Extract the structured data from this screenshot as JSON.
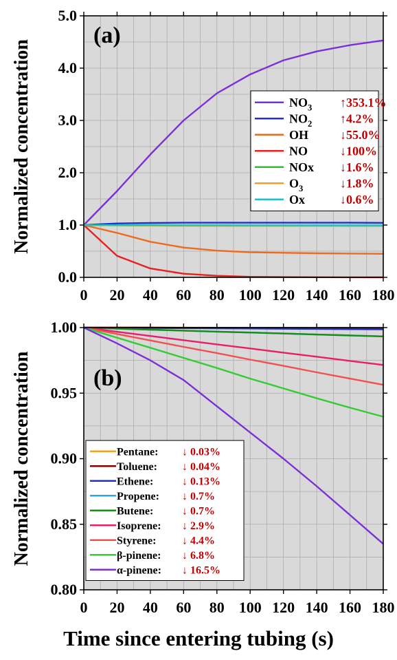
{
  "figure": {
    "xlabel": "Time since entering tubing (s)"
  },
  "chart_data": [
    {
      "type": "line",
      "panel_label": "(a)",
      "ylabel": "Normalized concentration",
      "xlim": [
        0,
        180
      ],
      "ylim": [
        0,
        5.0
      ],
      "x_ticks": [
        0,
        20,
        40,
        60,
        80,
        100,
        120,
        140,
        160,
        180
      ],
      "y_ticks": [
        "0.0",
        "1.0",
        "2.0",
        "3.0",
        "4.0",
        "5.0"
      ],
      "grid": true,
      "legend_position": "right",
      "x": [
        0,
        20,
        40,
        60,
        80,
        100,
        120,
        140,
        160,
        180
      ],
      "series": [
        {
          "name": "NO",
          "sub": "3",
          "change": "↑353.1%",
          "color": "#7B2FD8",
          "values": [
            1.0,
            1.65,
            2.35,
            3.0,
            3.52,
            3.88,
            4.15,
            4.32,
            4.44,
            4.53
          ]
        },
        {
          "name": "NO",
          "sub": "2",
          "change": "↑4.2%",
          "color": "#1F2FD0",
          "values": [
            1.0,
            1.03,
            1.04,
            1.045,
            1.045,
            1.045,
            1.045,
            1.045,
            1.045,
            1.042
          ]
        },
        {
          "name": "OH",
          "sub": "",
          "change": "↓55.0%",
          "color": "#EE6A1E",
          "values": [
            1.0,
            0.85,
            0.68,
            0.57,
            0.51,
            0.48,
            0.47,
            0.46,
            0.455,
            0.45
          ]
        },
        {
          "name": "NO",
          "sub": "",
          "change": "↓100%",
          "color": "#E8201E",
          "values": [
            1.0,
            0.41,
            0.17,
            0.07,
            0.03,
            0.01,
            0.005,
            0.003,
            0.001,
            0.0
          ]
        },
        {
          "name": "NOx",
          "sub": "",
          "change": "↓1.6%",
          "color": "#2CC02C",
          "values": [
            1.0,
            0.995,
            0.99,
            0.988,
            0.987,
            0.986,
            0.985,
            0.985,
            0.984,
            0.984
          ]
        },
        {
          "name": "O",
          "sub": "3",
          "change": "↓1.8%",
          "color": "#F5A318",
          "values": [
            1.0,
            0.995,
            0.99,
            0.988,
            0.986,
            0.985,
            0.984,
            0.983,
            0.982,
            0.982
          ]
        },
        {
          "name": "Ox",
          "sub": "",
          "change": "↓0.6%",
          "color": "#1FC1C8",
          "values": [
            1.0,
            0.998,
            0.997,
            0.996,
            0.996,
            0.995,
            0.995,
            0.994,
            0.994,
            0.994
          ]
        }
      ]
    },
    {
      "type": "line",
      "panel_label": "(b)",
      "ylabel": "Normalized concentration",
      "xlim": [
        0,
        180
      ],
      "ylim": [
        0.8,
        1.0
      ],
      "x_ticks": [
        0,
        20,
        40,
        60,
        80,
        100,
        120,
        140,
        160,
        180
      ],
      "y_ticks": [
        "0.80",
        "0.85",
        "0.90",
        "0.95",
        "1.00"
      ],
      "grid": true,
      "legend_position": "bottom-left",
      "x": [
        0,
        20,
        40,
        60,
        80,
        100,
        120,
        140,
        160,
        180
      ],
      "series": [
        {
          "name": "Pentane:",
          "change": "↓ 0.03%",
          "color": "#F5A318",
          "values": [
            1.0,
            1.0,
            1.0,
            1.0,
            0.9999,
            0.9999,
            0.9999,
            0.9998,
            0.9998,
            0.9997
          ]
        },
        {
          "name": "Toluene:",
          "change": "↓ 0.04%",
          "color": "#8B0000",
          "values": [
            1.0,
            1.0,
            1.0,
            0.9999,
            0.9999,
            0.9998,
            0.9998,
            0.9997,
            0.9997,
            0.9996
          ]
        },
        {
          "name": "Ethene:",
          "change": "↓ 0.13%",
          "color": "#1F2FD0",
          "values": [
            1.0,
            0.9999,
            0.9997,
            0.9996,
            0.9994,
            0.9993,
            0.9991,
            0.999,
            0.9988,
            0.9987
          ]
        },
        {
          "name": "Propene:",
          "change": "↓ 0.7%",
          "color": "#29A8E8",
          "values": [
            1.0,
            0.9992,
            0.9984,
            0.9977,
            0.9969,
            0.9962,
            0.9955,
            0.9947,
            0.994,
            0.9933
          ]
        },
        {
          "name": "Butene:",
          "change": "↓ 0.7%",
          "color": "#1A8C1A",
          "values": [
            1.0,
            0.9992,
            0.9984,
            0.9977,
            0.9969,
            0.9962,
            0.9955,
            0.9947,
            0.994,
            0.9933
          ]
        },
        {
          "name": "Isoprene:",
          "change": "↓ 2.9%",
          "color": "#E81E6A",
          "values": [
            1.0,
            0.9968,
            0.9936,
            0.9904,
            0.9872,
            0.9841,
            0.9809,
            0.9778,
            0.9746,
            0.9715
          ]
        },
        {
          "name": "Styrene:",
          "change": "↓ 4.4%",
          "color": "#F25050",
          "values": [
            1.0,
            0.9951,
            0.9902,
            0.9853,
            0.9805,
            0.9756,
            0.9708,
            0.9659,
            0.9611,
            0.9563
          ]
        },
        {
          "name": "β-pinene:",
          "change": "↓ 6.8%",
          "color": "#33CC33",
          "values": [
            1.0,
            0.9923,
            0.9846,
            0.9769,
            0.9692,
            0.9611,
            0.9536,
            0.9461,
            0.9389,
            0.932
          ]
        },
        {
          "name": "α-pinene:",
          "change": "↓ 16.5%",
          "color": "#7B2FD8",
          "values": [
            1.0,
            0.988,
            0.975,
            0.96,
            0.94,
            0.92,
            0.9,
            0.879,
            0.857,
            0.835
          ]
        }
      ]
    }
  ]
}
